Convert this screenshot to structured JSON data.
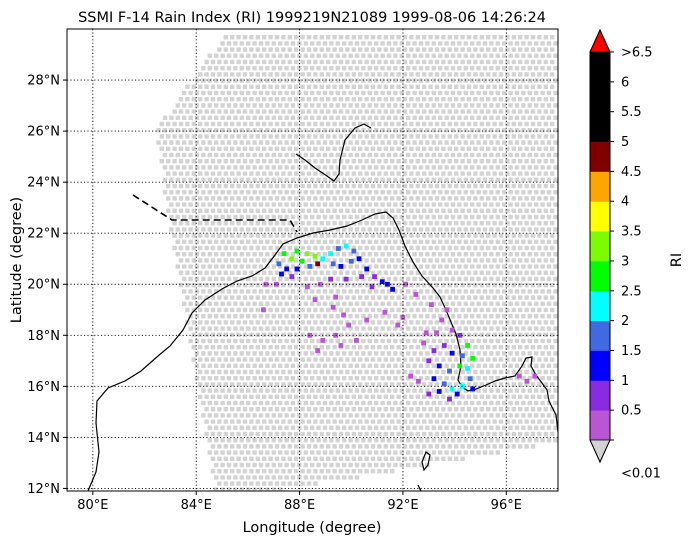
{
  "chart_data": {
    "type": "scatter",
    "title": "SSMI F-14 Rain Index (RI) 1999219N21089 1999-08-06 14:26:24",
    "xlabel": "Longitude (degree)",
    "ylabel": "Latitude (degree)",
    "xlim": [
      79.0,
      98.0
    ],
    "ylim": [
      11.9,
      30.0
    ],
    "grid": true,
    "grid_style": "dotted",
    "x_ticks": [
      {
        "value": 80,
        "label": "80°E"
      },
      {
        "value": 84,
        "label": "84°E"
      },
      {
        "value": 88,
        "label": "88°E"
      },
      {
        "value": 92,
        "label": "92°E"
      },
      {
        "value": 96,
        "label": "96°E"
      }
    ],
    "y_ticks": [
      {
        "value": 12,
        "label": "12°N"
      },
      {
        "value": 14,
        "label": "14°N"
      },
      {
        "value": 16,
        "label": "16°N"
      },
      {
        "value": 18,
        "label": "18°N"
      },
      {
        "value": 20,
        "label": "20°N"
      },
      {
        "value": 22,
        "label": "22°N"
      },
      {
        "value": 24,
        "label": "24°N"
      },
      {
        "value": 26,
        "label": "26°N"
      },
      {
        "value": 28,
        "label": "28°N"
      }
    ],
    "swath": {
      "color": "#d3d3d3",
      "corners": [
        [
          82.4,
          26.0
        ],
        [
          85.2,
          29.9
        ],
        [
          98.0,
          29.9
        ],
        [
          98.0,
          13.8
        ],
        [
          87.2,
          11.9
        ],
        [
          84.7,
          11.9
        ]
      ]
    },
    "colorbar": {
      "label": "RI",
      "ticks": [
        "<0.01",
        "0.5",
        "1",
        "1.5",
        "2",
        "2.5",
        "3",
        "3.5",
        "4",
        "4.5",
        "5",
        "5.5",
        "6",
        ">6.5"
      ],
      "colors": [
        "#ba55d3",
        "#8a2be2",
        "#0000ff",
        "#4169e1",
        "#00ffff",
        "#00ff00",
        "#7cfc00",
        "#ffff00",
        "#ffa500",
        "#800000",
        "#000000",
        "#000000",
        "#000000"
      ],
      "under_color": "#d3d3d3",
      "over_color": "#ff0000"
    },
    "rain_points": [
      [
        87.4,
        21.2,
        5
      ],
      [
        87.9,
        21.3,
        5
      ],
      [
        88.3,
        21.2,
        6
      ],
      [
        88.6,
        21.1,
        6
      ],
      [
        87.7,
        21.0,
        6
      ],
      [
        88.1,
        20.9,
        5
      ],
      [
        87.2,
        20.8,
        3
      ],
      [
        87.5,
        20.6,
        2
      ],
      [
        87.9,
        20.6,
        2
      ],
      [
        88.4,
        20.7,
        3
      ],
      [
        87.3,
        20.4,
        2
      ],
      [
        87.7,
        20.3,
        1
      ],
      [
        88.7,
        20.8,
        9
      ],
      [
        88.9,
        21.0,
        4
      ],
      [
        89.2,
        21.2,
        4
      ],
      [
        89.5,
        21.4,
        3
      ],
      [
        89.8,
        21.5,
        4
      ],
      [
        90.1,
        21.3,
        3
      ],
      [
        89.3,
        20.8,
        3
      ],
      [
        89.6,
        20.7,
        2
      ],
      [
        90.0,
        20.9,
        3
      ],
      [
        90.3,
        21.0,
        2
      ],
      [
        90.6,
        20.6,
        2
      ],
      [
        90.9,
        20.3,
        1
      ],
      [
        91.2,
        20.1,
        2
      ],
      [
        91.4,
        20.0,
        2
      ],
      [
        91.6,
        19.8,
        2
      ],
      [
        90.8,
        19.9,
        1
      ],
      [
        90.4,
        20.3,
        1
      ],
      [
        89.8,
        20.2,
        1
      ],
      [
        89.2,
        20.2,
        1
      ],
      [
        88.8,
        20.0,
        0
      ],
      [
        88.3,
        19.9,
        0
      ],
      [
        87.1,
        20.0,
        0
      ],
      [
        86.7,
        20.0,
        0
      ],
      [
        88.6,
        19.4,
        0
      ],
      [
        89.3,
        19.1,
        0
      ],
      [
        89.7,
        18.8,
        0
      ],
      [
        89.9,
        18.4,
        0
      ],
      [
        89.4,
        18.0,
        0
      ],
      [
        88.9,
        17.8,
        0
      ],
      [
        88.4,
        18.0,
        0
      ],
      [
        88.7,
        17.4,
        0
      ],
      [
        89.6,
        17.6,
        0
      ],
      [
        90.2,
        17.8,
        0
      ],
      [
        90.6,
        18.6,
        0
      ],
      [
        91.3,
        18.9,
        0
      ],
      [
        92.0,
        18.7,
        0
      ],
      [
        91.8,
        18.4,
        0
      ],
      [
        92.5,
        19.6,
        0
      ],
      [
        93.1,
        19.2,
        0
      ],
      [
        93.5,
        18.6,
        0
      ],
      [
        93.9,
        18.2,
        0
      ],
      [
        94.2,
        18.0,
        1
      ],
      [
        93.6,
        17.6,
        1
      ],
      [
        93.9,
        17.3,
        2
      ],
      [
        94.3,
        17.2,
        3
      ],
      [
        94.5,
        17.6,
        5
      ],
      [
        94.7,
        17.1,
        5
      ],
      [
        94.5,
        16.7,
        4
      ],
      [
        94.2,
        16.8,
        5
      ],
      [
        93.8,
        16.6,
        3
      ],
      [
        93.4,
        16.8,
        2
      ],
      [
        93.0,
        17.0,
        1
      ],
      [
        93.2,
        17.4,
        1
      ],
      [
        92.8,
        17.7,
        0
      ],
      [
        93.2,
        16.3,
        2
      ],
      [
        93.6,
        16.1,
        3
      ],
      [
        93.9,
        15.9,
        4
      ],
      [
        94.3,
        16.0,
        4
      ],
      [
        94.6,
        16.3,
        3
      ],
      [
        93.4,
        15.8,
        2
      ],
      [
        93.0,
        15.7,
        1
      ],
      [
        92.6,
        16.2,
        0
      ],
      [
        92.3,
        16.4,
        0
      ],
      [
        93.8,
        15.5,
        1
      ],
      [
        94.1,
        15.7,
        2
      ],
      [
        94.7,
        15.9,
        2
      ],
      [
        92.9,
        18.1,
        0
      ],
      [
        93.3,
        18.1,
        0
      ],
      [
        92.1,
        20.0,
        0
      ],
      [
        89.4,
        19.5,
        0
      ],
      [
        86.6,
        19.0,
        0
      ],
      [
        93.7,
        19.0,
        0
      ],
      [
        96.8,
        16.2,
        0
      ],
      [
        97.1,
        16.4,
        0
      ],
      [
        96.5,
        16.4,
        0
      ]
    ]
  }
}
